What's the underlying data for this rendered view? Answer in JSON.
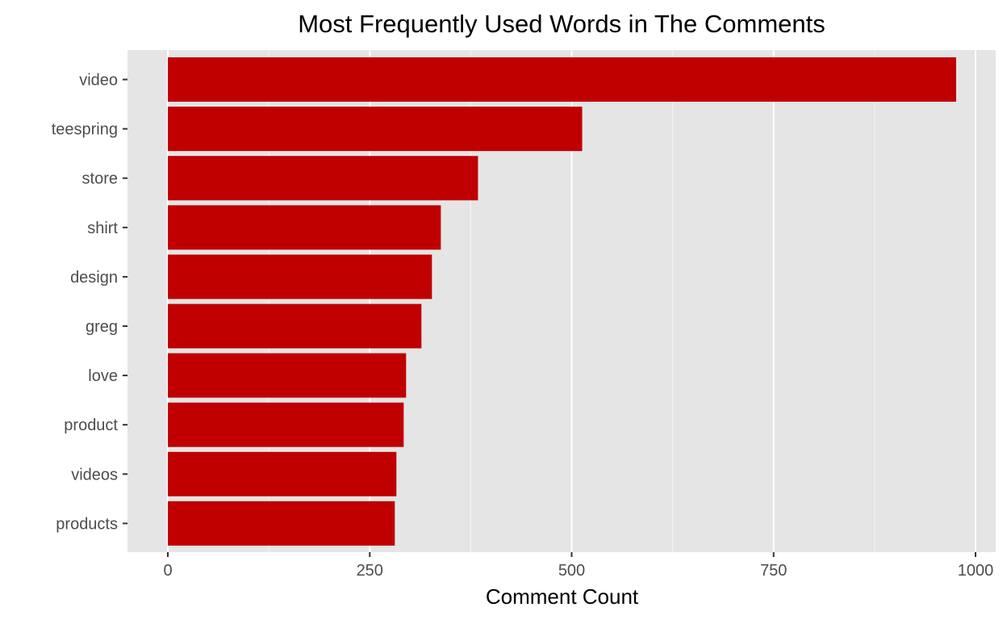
{
  "chart_data": {
    "type": "bar",
    "orientation": "horizontal",
    "title": "Most Frequently Used Words in The Comments",
    "xlabel": "Comment Count",
    "ylabel": "",
    "categories": [
      "video",
      "teespring",
      "store",
      "shirt",
      "design",
      "greg",
      "love",
      "product",
      "videos",
      "products"
    ],
    "values": [
      976,
      513,
      384,
      338,
      327,
      314,
      295,
      292,
      283,
      281
    ],
    "xlim": [
      0,
      1000
    ],
    "xticks": [
      0,
      250,
      500,
      750,
      1000
    ],
    "xtick_labels": [
      "0",
      "250",
      "500",
      "750",
      "1000"
    ],
    "grid": true,
    "legend": "none",
    "colors": {
      "bar": "#C00000",
      "panel": "#E5E5E5",
      "grid_major": "#FFFFFF",
      "grid_minor": "#F2F2F2",
      "tick": "#333333"
    }
  }
}
